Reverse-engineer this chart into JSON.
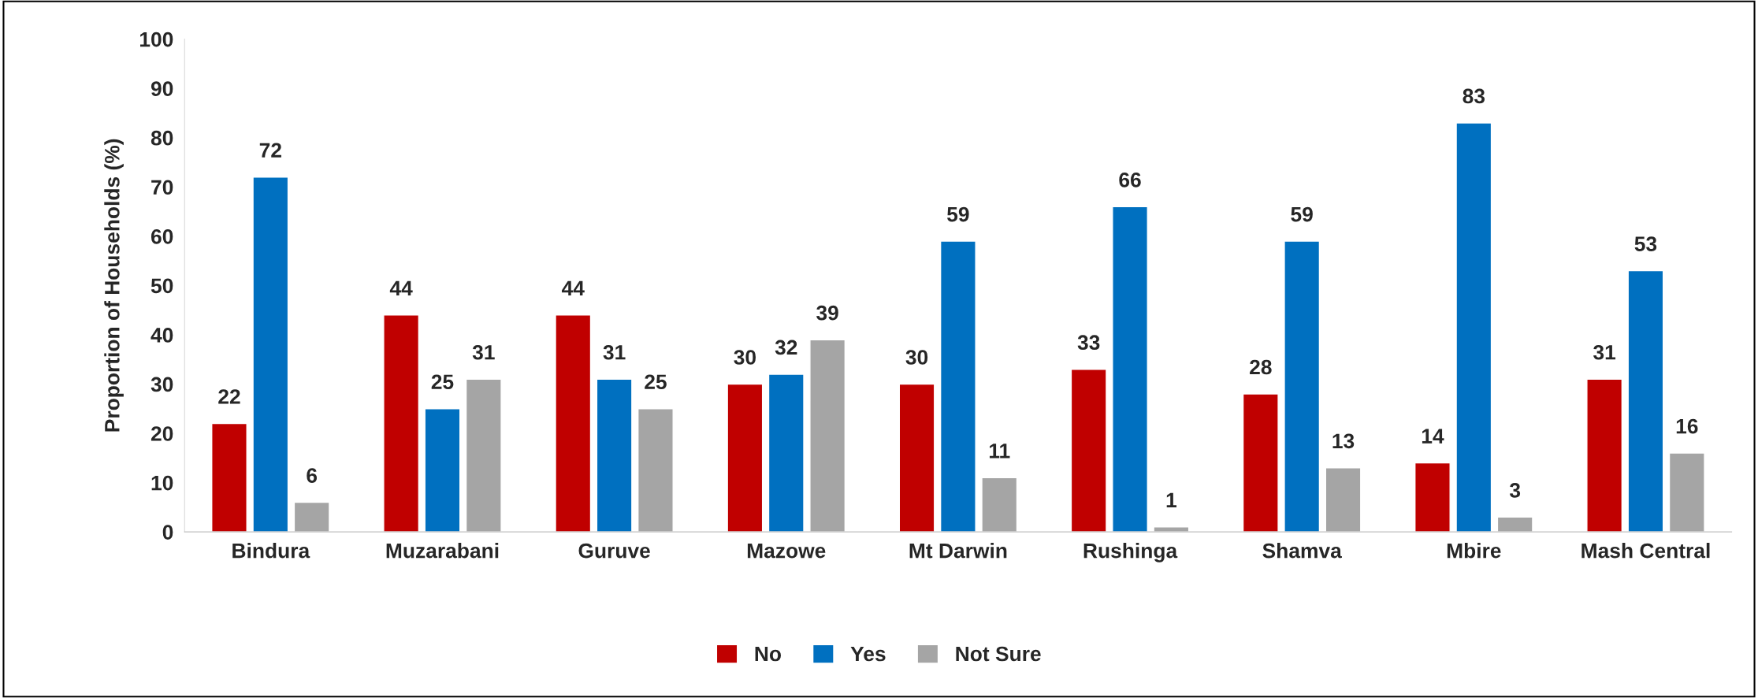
{
  "chart_data": {
    "type": "bar",
    "ylabel": "Proportion of Households (%)",
    "categories": [
      "Bindura",
      "Muzarabani",
      "Guruve",
      "Mazowe",
      "Mt Darwin",
      "Rushinga",
      "Shamva",
      "Mbire",
      "Mash Central"
    ],
    "series": [
      {
        "name": "No",
        "color": "#c00000",
        "values": [
          22,
          44,
          44,
          30,
          30,
          33,
          28,
          14,
          31
        ]
      },
      {
        "name": "Yes",
        "color": "#0070c0",
        "values": [
          72,
          25,
          31,
          32,
          59,
          66,
          59,
          83,
          53
        ]
      },
      {
        "name": "Not Sure",
        "color": "#a5a5a5",
        "values": [
          6,
          31,
          25,
          39,
          11,
          1,
          13,
          3,
          16
        ]
      }
    ],
    "ylim": [
      0,
      100
    ],
    "yticks": [
      0,
      10,
      20,
      30,
      40,
      50,
      60,
      70,
      80,
      90,
      100
    ],
    "data_labels": true,
    "grid": false,
    "legend": "bottom"
  }
}
